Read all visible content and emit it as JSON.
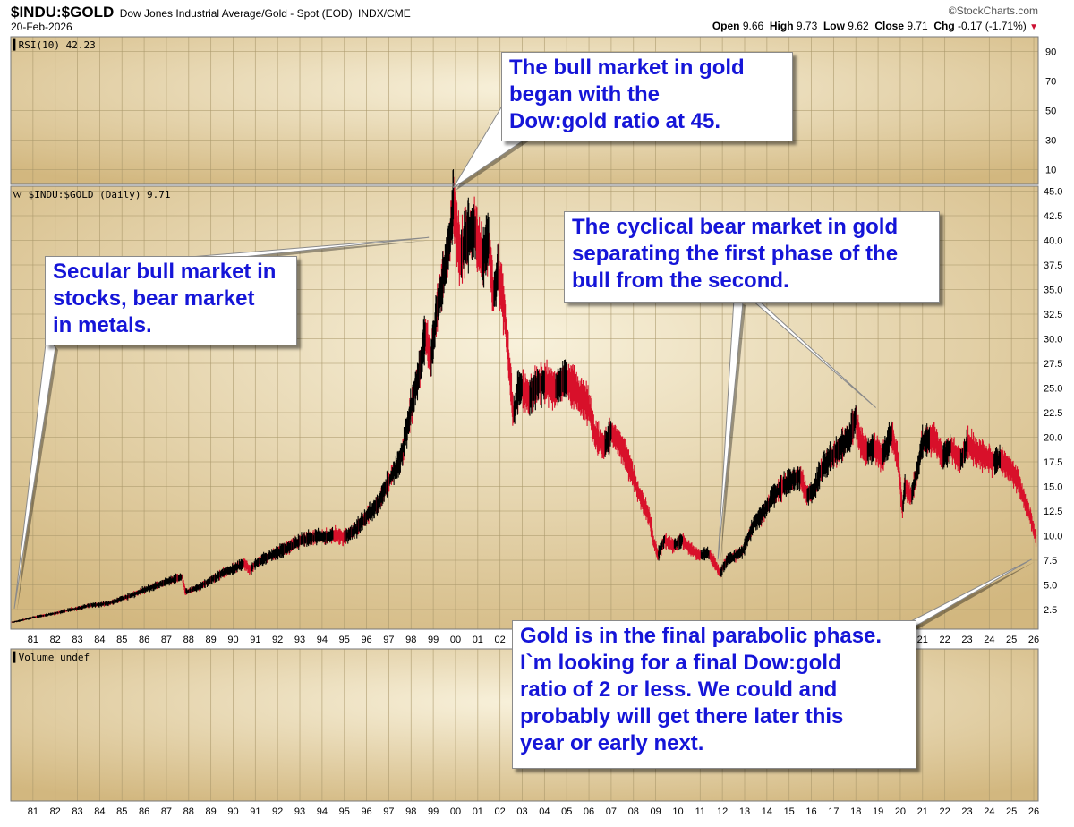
{
  "header": {
    "symbol": "$INDU:$GOLD",
    "description": "Dow Jones Industrial Average/Gold - Spot (EOD)",
    "exchange": "INDX/CME",
    "date": "20-Feb-2026",
    "copyright": "©StockCharts.com",
    "quote": {
      "open_label": "Open",
      "open": "9.66",
      "high_label": "High",
      "high": "9.73",
      "low_label": "Low",
      "low": "9.62",
      "close_label": "Close",
      "close": "9.71",
      "chg_label": "Chg",
      "chg": "-0.17 (-1.71%)",
      "chg_arrow": "▼"
    }
  },
  "panels": {
    "rsi_label": "RSI(10) 42.23",
    "price_label": "$INDU:$GOLD (Daily) 9.71",
    "volume_label": "Volume undef"
  },
  "callouts": [
    {
      "lines": [
        "The bull market in gold",
        "began with the",
        "Dow:gold ratio at 45."
      ]
    },
    {
      "lines": [
        "Secular bull market in",
        "stocks, bear market",
        "in metals."
      ]
    },
    {
      "lines": [
        "The cyclical bear market in gold",
        "separating the first phase of the",
        "bull from the second."
      ]
    },
    {
      "lines": [
        "Gold is in the final parabolic phase.",
        "I`m looking for a final Dow:gold",
        "ratio of 2 or less. We could and",
        "probably will get there later this",
        "year or early next."
      ]
    }
  ],
  "colors": {
    "background_light": "#f8f1db",
    "background_dark": "#d2b77f",
    "grid": "#a9976a",
    "price_up": "#000000",
    "price_down": "#d8102a",
    "callout_text": "#1515d8",
    "chg_arrow": "#cc1133"
  },
  "chart_data": [
    {
      "type": "line",
      "title": "$INDU:$GOLD (Daily) 9.71",
      "x_tick_labels": [
        "81",
        "82",
        "83",
        "84",
        "85",
        "86",
        "87",
        "88",
        "89",
        "90",
        "91",
        "92",
        "93",
        "94",
        "95",
        "96",
        "97",
        "98",
        "99",
        "00",
        "01",
        "02",
        "03",
        "04",
        "05",
        "06",
        "07",
        "08",
        "09",
        "10",
        "11",
        "12",
        "13",
        "14",
        "15",
        "16",
        "17",
        "18",
        "19",
        "20",
        "21",
        "22",
        "23",
        "24",
        "25",
        "26"
      ],
      "y_tick_labels": [
        "45.0",
        "42.5",
        "40.0",
        "37.5",
        "35.0",
        "32.5",
        "30.0",
        "27.5",
        "25.0",
        "22.5",
        "20.0",
        "17.5",
        "15.0",
        "12.5",
        "10.0",
        "7.5",
        "5.0",
        "2.5"
      ],
      "ylim": [
        0.5,
        45.5
      ],
      "xlim": [
        1980.0,
        2026.2
      ],
      "grid": true,
      "series": [
        {
          "x": [
            1980.05,
            1980.5,
            1981.0,
            1981.5,
            1982.0,
            1982.5,
            1983.0,
            1983.5,
            1984.0,
            1984.5,
            1985.0,
            1985.5,
            1986.0,
            1986.5,
            1987.0,
            1987.4,
            1987.7,
            1987.85,
            1988.0,
            1988.5,
            1989.0,
            1989.5,
            1990.0,
            1990.5,
            1990.8,
            1991.0,
            1991.5,
            1992.0,
            1992.5,
            1993.0,
            1993.5,
            1994.0,
            1994.5,
            1995.0,
            1995.5,
            1996.0,
            1996.5,
            1997.0,
            1997.5,
            1997.8,
            1998.0,
            1998.4,
            1998.65,
            1998.9,
            1999.2,
            1999.5,
            1999.75,
            1999.9,
            2000.2,
            2000.5,
            2000.9,
            2001.2,
            2001.5,
            2001.7,
            2001.9,
            2002.2,
            2002.6,
            2002.8,
            2003.0,
            2003.3,
            2003.7,
            2004.0,
            2004.5,
            2005.0,
            2005.5,
            2006.0,
            2006.3,
            2006.7,
            2007.0,
            2007.5,
            2007.9,
            2008.3,
            2008.7,
            2008.9,
            2009.1,
            2009.4,
            2009.8,
            2010.2,
            2010.6,
            2011.0,
            2011.4,
            2011.7,
            2011.9,
            2012.2,
            2012.6,
            2012.9,
            2013.2,
            2013.5,
            2013.9,
            2014.3,
            2014.7,
            2015.0,
            2015.5,
            2015.8,
            2016.1,
            2016.5,
            2016.9,
            2017.3,
            2017.7,
            2018.0,
            2018.2,
            2018.5,
            2018.8,
            2019.2,
            2019.6,
            2019.9,
            2020.1,
            2020.2,
            2020.5,
            2020.8,
            2021.0,
            2021.3,
            2021.6,
            2021.9,
            2022.3,
            2022.7,
            2023.0,
            2023.4,
            2023.8,
            2024.2,
            2024.5,
            2024.8,
            2025.0,
            2025.3,
            2025.6,
            2025.9,
            2026.1
          ],
          "y": [
            1.2,
            1.4,
            1.7,
            1.9,
            2.1,
            2.4,
            2.6,
            2.9,
            3.0,
            3.2,
            3.6,
            4.0,
            4.5,
            4.9,
            5.3,
            5.6,
            5.9,
            4.3,
            4.4,
            4.8,
            5.5,
            6.2,
            6.6,
            7.2,
            6.5,
            7.2,
            7.8,
            8.3,
            8.8,
            9.5,
            9.8,
            9.9,
            10.1,
            9.8,
            10.6,
            12.0,
            13.2,
            15.5,
            17.5,
            20.5,
            23.0,
            27.0,
            30.5,
            28.0,
            33.5,
            37.0,
            40.0,
            44.5,
            38.0,
            40.5,
            41.0,
            38.0,
            40.0,
            34.0,
            37.0,
            33.0,
            22.0,
            24.5,
            25.0,
            24.0,
            25.5,
            25.5,
            25.0,
            26.0,
            24.5,
            23.0,
            20.0,
            19.0,
            20.5,
            19.0,
            16.5,
            14.0,
            12.0,
            9.5,
            8.0,
            9.5,
            9.0,
            9.5,
            8.5,
            8.0,
            8.2,
            7.0,
            6.2,
            7.5,
            8.0,
            8.3,
            10.0,
            11.5,
            12.5,
            14.0,
            15.0,
            15.5,
            16.0,
            14.0,
            14.5,
            17.0,
            18.0,
            19.0,
            20.0,
            22.0,
            19.5,
            18.5,
            19.0,
            18.0,
            20.5,
            17.5,
            12.5,
            15.0,
            14.0,
            17.0,
            19.5,
            20.0,
            19.5,
            18.0,
            19.0,
            17.5,
            19.5,
            18.5,
            18.0,
            17.5,
            17.8,
            17.0,
            16.5,
            15.5,
            13.5,
            11.5,
            9.71
          ]
        }
      ]
    },
    {
      "type": "line",
      "title": "RSI(10) 42.23",
      "y_tick_labels": [
        "90",
        "70",
        "50",
        "30",
        "10"
      ],
      "ylim": [
        0,
        100
      ],
      "grid": true,
      "series": []
    }
  ]
}
